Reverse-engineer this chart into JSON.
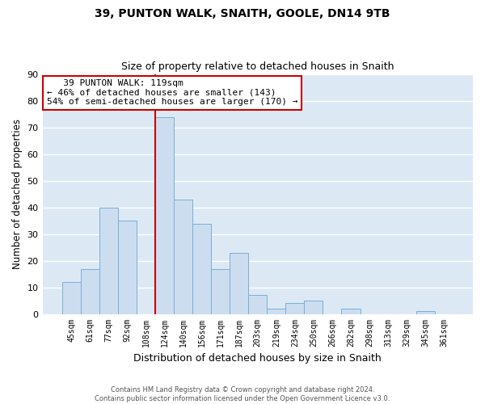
{
  "title": "39, PUNTON WALK, SNAITH, GOOLE, DN14 9TB",
  "subtitle": "Size of property relative to detached houses in Snaith",
  "xlabel": "Distribution of detached houses by size in Snaith",
  "ylabel": "Number of detached properties",
  "bar_color": "#ccddf0",
  "bar_edge_color": "#7aafd4",
  "background_color": "#dce9f5",
  "grid_color": "#ffffff",
  "categories": [
    "45sqm",
    "61sqm",
    "77sqm",
    "92sqm",
    "108sqm",
    "124sqm",
    "140sqm",
    "156sqm",
    "171sqm",
    "187sqm",
    "203sqm",
    "219sqm",
    "234sqm",
    "250sqm",
    "266sqm",
    "282sqm",
    "298sqm",
    "313sqm",
    "329sqm",
    "345sqm",
    "361sqm"
  ],
  "values": [
    12,
    17,
    40,
    35,
    0,
    74,
    43,
    34,
    17,
    23,
    7,
    2,
    4,
    5,
    0,
    2,
    0,
    0,
    0,
    1,
    0
  ],
  "ylim": [
    0,
    90
  ],
  "yticks": [
    0,
    10,
    20,
    30,
    40,
    50,
    60,
    70,
    80,
    90
  ],
  "property_label": "39 PUNTON WALK: 119sqm",
  "pct_smaller": 46,
  "pct_smaller_count": 143,
  "pct_larger": 54,
  "pct_larger_count": 170,
  "marker_bin_index": 5,
  "footer_line1": "Contains HM Land Registry data © Crown copyright and database right 2024.",
  "footer_line2": "Contains public sector information licensed under the Open Government Licence v3.0.",
  "annotation_box_color": "#ffffff",
  "annotation_box_edge": "#cc0000",
  "marker_line_color": "#cc0000"
}
